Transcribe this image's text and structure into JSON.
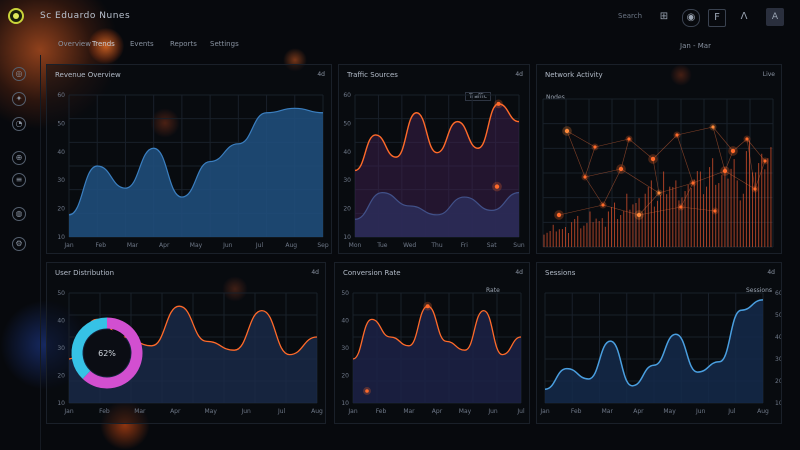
{
  "app": {
    "title": "Sc Eduardo Nunes"
  },
  "topbar": {
    "search": "Search",
    "icons": [
      "settings-icon",
      "help-icon",
      "doc-icon",
      "alert-icon",
      "user-icon"
    ],
    "avatar": "A"
  },
  "tabs": [
    "Overview",
    "Trends",
    "Events",
    "Reports",
    "Settings"
  ],
  "date_range": "Jan - Mar",
  "sidebar": {
    "icons": [
      "dashboard-icon",
      "analytics-icon",
      "clock-icon",
      "target-icon",
      "layers-icon",
      "globe-icon",
      "settings-icon",
      "help-icon"
    ]
  },
  "colors": {
    "accent_orange": "#ff6a2a",
    "accent_blue": "#4a9fe0",
    "area_blue": "#1f4c7a",
    "accent_magenta": "#d24fd0",
    "accent_cyan": "#36c2e6",
    "bg": "#07090d"
  },
  "panels": {
    "p1": {
      "title": "Revenue Overview",
      "badge": "4d",
      "xticks": [
        "Jan",
        "Feb",
        "Mar",
        "Apr",
        "May",
        "Jun",
        "Jul",
        "Aug",
        "Sep"
      ],
      "yticks": [
        "60",
        "50",
        "40",
        "30",
        "20",
        "10"
      ]
    },
    "p2": {
      "title": "Traffic Sources",
      "badge": "4d",
      "legend": "Traffic",
      "xticks": [
        "Mon",
        "Tue",
        "Wed",
        "Thu",
        "Fri",
        "Sat",
        "Sun"
      ],
      "yticks": [
        "60",
        "50",
        "40",
        "30",
        "20",
        "10"
      ]
    },
    "p3": {
      "title": "Network Activity",
      "badge": "Live",
      "legend": "Nodes",
      "xticks": [],
      "yticks": []
    },
    "p4": {
      "title": "User Distribution",
      "badge": "4d",
      "donut_label": "62%",
      "xticks": [
        "Jan",
        "Feb",
        "Mar",
        "Apr",
        "May",
        "Jun",
        "Jul",
        "Aug"
      ],
      "yticks": [
        "50",
        "40",
        "30",
        "20",
        "10"
      ]
    },
    "p5": {
      "title": "Conversion Rate",
      "badge": "4d",
      "legend": "Rate",
      "xticks": [
        "Jan",
        "Feb",
        "Mar",
        "Apr",
        "May",
        "Jun",
        "Jul"
      ],
      "yticks": [
        "50",
        "40",
        "30",
        "20",
        "10"
      ]
    },
    "p6": {
      "title": "Sessions",
      "badge": "4d",
      "legend": "Sessions",
      "xticks": [
        "Jan",
        "Feb",
        "Mar",
        "Apr",
        "May",
        "Jun",
        "Jul",
        "Aug"
      ],
      "yticks": [
        "60",
        "50",
        "40",
        "30",
        "20",
        "10"
      ]
    }
  },
  "chart_data": [
    {
      "type": "area",
      "series": [
        {
          "values": [
            10,
            32,
            22,
            40,
            18,
            34,
            42,
            56,
            58,
            56
          ]
        }
      ]
    },
    {
      "type": "line",
      "series": [
        {
          "values": [
            30,
            46,
            36,
            56,
            38,
            52,
            40,
            60,
            52
          ]
        },
        {
          "values": [
            8,
            20,
            14,
            10,
            18,
            12,
            20
          ]
        }
      ]
    },
    {
      "type": "bar",
      "series": [
        {
          "values": [
            8,
            10,
            9,
            14,
            12,
            16,
            13,
            20,
            18,
            24,
            22,
            30,
            26,
            34,
            30,
            28,
            38,
            34,
            40,
            36,
            44,
            30,
            48,
            42,
            50
          ]
        }
      ]
    },
    {
      "type": "pie",
      "series": [
        {
          "values": [
            62,
            38
          ]
        }
      ]
    },
    {
      "type": "line",
      "series": [
        {
          "values": [
            20,
            38,
            30,
            26,
            44,
            28,
            24,
            42,
            22,
            30
          ]
        }
      ]
    },
    {
      "type": "area",
      "series": [
        {
          "values": [
            8,
            20,
            14,
            36,
            10,
            22,
            40,
            18,
            24,
            54,
            60
          ]
        }
      ]
    }
  ]
}
